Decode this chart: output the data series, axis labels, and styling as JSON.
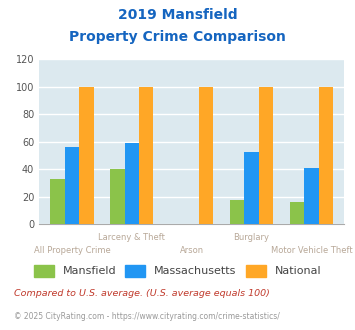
{
  "title_line1": "2019 Mansfield",
  "title_line2": "Property Crime Comparison",
  "categories": [
    "All Property Crime",
    "Larceny & Theft",
    "Arson",
    "Burglary",
    "Motor Vehicle Theft"
  ],
  "mansfield": [
    33,
    40,
    0,
    18,
    16
  ],
  "massachusetts": [
    56,
    59,
    0,
    53,
    41
  ],
  "national": [
    100,
    100,
    100,
    100,
    100
  ],
  "bar_colors": {
    "mansfield": "#8bc34a",
    "massachusetts": "#2196f3",
    "national": "#ffa726"
  },
  "ylim": [
    0,
    120
  ],
  "yticks": [
    0,
    20,
    40,
    60,
    80,
    100,
    120
  ],
  "xlabel_color": "#b8a898",
  "title_color": "#1565c0",
  "bg_color": "#dce9ef",
  "legend_labels": [
    "Mansfield",
    "Massachusetts",
    "National"
  ],
  "footnote1": "Compared to U.S. average. (U.S. average equals 100)",
  "footnote2": "© 2025 CityRating.com - https://www.cityrating.com/crime-statistics/",
  "footnote1_color": "#c0392b",
  "footnote2_color": "#999999",
  "grid_color": "#ffffff",
  "upper_row_indices": [
    1,
    3
  ],
  "lower_row_indices": [
    0,
    2,
    4
  ]
}
